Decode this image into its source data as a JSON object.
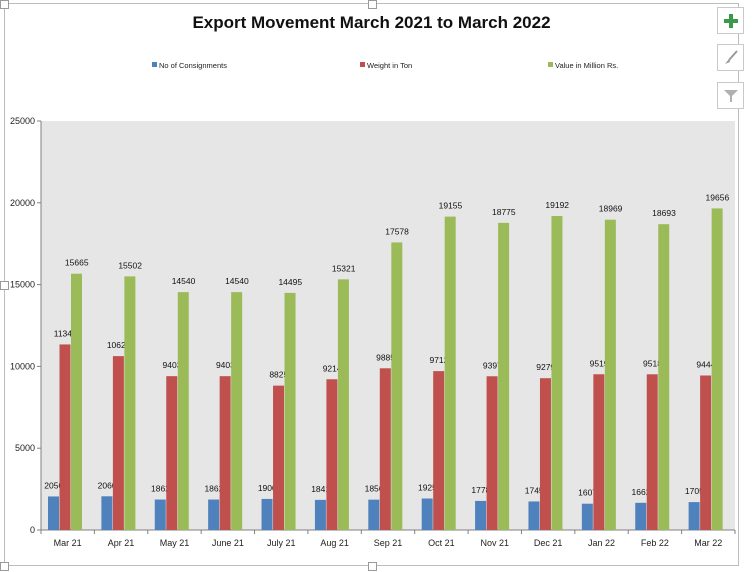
{
  "chart_data": {
    "type": "bar",
    "title": "Export Movement March 2021 to March 2022",
    "categories": [
      "Mar 21",
      "Apr 21",
      "May 21",
      "June 21",
      "July 21",
      "Aug 21",
      "Sep 21",
      "Oct 21",
      "Nov 21",
      "Dec 21",
      "Jan 22",
      "Feb 22",
      "Mar 22"
    ],
    "series": [
      {
        "name": "No of Consignments",
        "color": "#4f81bd",
        "values": [
          2050,
          2060,
          1862,
          1862,
          1900,
          1841,
          1856,
          1925,
          1778,
          1745,
          1607,
          1662,
          1705
        ]
      },
      {
        "name": "Weight in Ton",
        "color": "#c0504d",
        "values": [
          11342,
          10629,
          9403,
          9403,
          8825,
          9214,
          9885,
          9712,
          9397,
          9279,
          9519,
          9518,
          9444
        ]
      },
      {
        "name": "Value in Million Rs.",
        "color": "#9bbb59",
        "values": [
          15665,
          15502,
          14540,
          14540,
          14495,
          15321,
          17578,
          19155,
          18775,
          19192,
          18969,
          18693,
          19656
        ]
      }
    ],
    "ylim": [
      0,
      25000
    ],
    "yticks": [
      0,
      5000,
      10000,
      15000,
      20000,
      25000
    ],
    "legend": "top",
    "grid": false,
    "plot_background": "#e6e6e6"
  },
  "toolbar": {
    "add_icon": "plus-icon",
    "style_icon": "brush-icon",
    "filter_icon": "filter-icon"
  }
}
